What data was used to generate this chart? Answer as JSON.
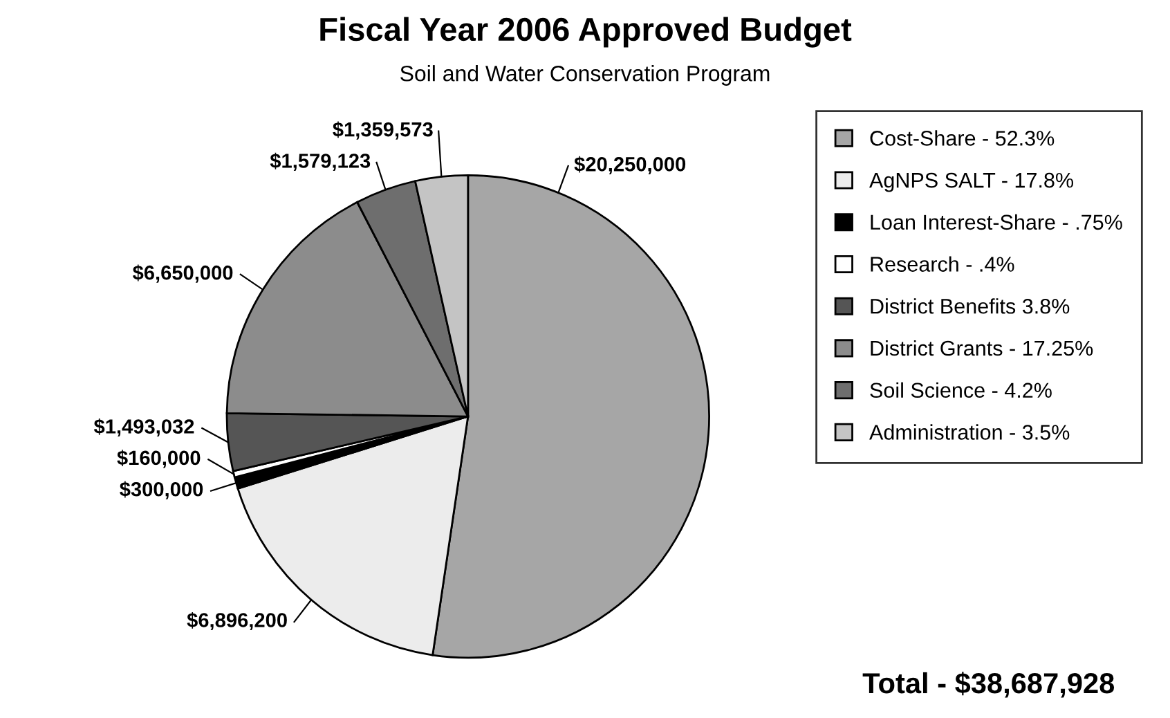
{
  "chart_data": {
    "type": "pie",
    "title": "Fiscal Year 2006 Approved Budget",
    "subtitle": "Soil and Water Conservation Program",
    "categories": [
      "Cost-Share - 52.3%",
      "AgNPS SALT - 17.8%",
      "Loan Interest-Share - .75%",
      "Research - .4%",
      "District Benefits 3.8%",
      "District Grants - 17.25%",
      "Soil Science - 4.2%",
      "Administration - 3.5%"
    ],
    "values": [
      20250000,
      6896200,
      300000,
      160000,
      1493032,
      6650000,
      1579123,
      1359573
    ],
    "value_labels": [
      "$20,250,000",
      "$6,896,200",
      "$300,000",
      "$160,000",
      "$1,493,032",
      "$6,650,000",
      "$1,579,123",
      "$1,359,573"
    ],
    "colors": [
      "#a6a6a6",
      "#ececec",
      "#000000",
      "#ffffff",
      "#555555",
      "#8c8c8c",
      "#6e6e6e",
      "#c4c4c4"
    ],
    "legend": "right",
    "annotations": [
      "Total - $38,687,928"
    ]
  }
}
